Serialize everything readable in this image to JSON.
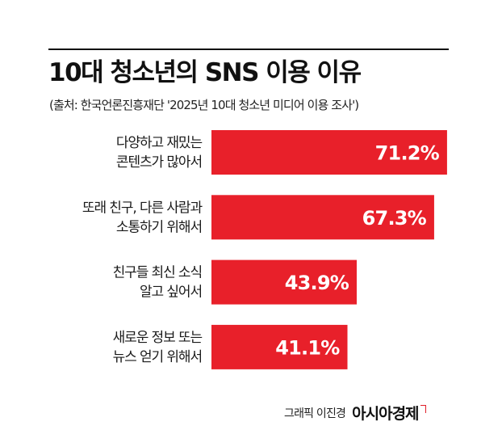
{
  "title": "10대 청소년의 SNS 이용 이유",
  "source": "(출처: 한국언론진흥재단 '2025년 10대 청소년 미디어 이용 조사')",
  "credit": "그래픽 이진경",
  "logo": "아시아경제",
  "colors": {
    "bar": "#e8202a",
    "text": "#111111",
    "value_text": "#ffffff"
  },
  "chart_data": {
    "type": "bar",
    "orientation": "horizontal",
    "title": "10대 청소년의 SNS 이용 이유",
    "categories": [
      [
        "다양하고 재밌는",
        "콘텐츠가 많아서"
      ],
      [
        "또래 친구, 다른 사람과",
        "소통하기 위해서"
      ],
      [
        "친구들 최신 소식",
        "알고 싶어서"
      ],
      [
        "새로운 정보 또는",
        "뉴스 얻기 위해서"
      ]
    ],
    "values": [
      71.2,
      67.3,
      43.9,
      41.1
    ],
    "value_labels": [
      "71.2%",
      "67.3%",
      "43.9%",
      "41.1%"
    ],
    "unit": "%",
    "xlim": [
      0,
      100
    ],
    "grid": false,
    "legend": "none"
  }
}
